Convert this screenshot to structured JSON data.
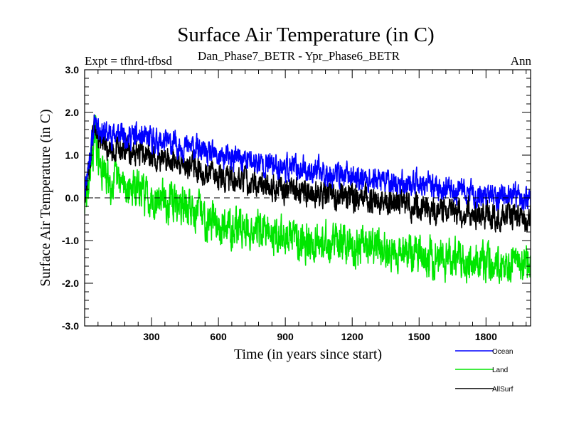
{
  "chart_data": {
    "type": "line",
    "title": "Surface Air Temperature (in C)",
    "subtitle": "Dan_Phase7_BETR - Ypr_Phase6_BETR",
    "left_note": "Expt = tfhrd-tfbsd",
    "right_note": "Ann",
    "xlabel": "Time (in years since start)",
    "ylabel": "Surface Air Temperature (in C)",
    "xlim": [
      0,
      2000
    ],
    "ylim": [
      -3.0,
      3.0
    ],
    "xticks": [
      300,
      600,
      900,
      1200,
      1500,
      1800
    ],
    "xtick_labels": [
      "300",
      "600",
      "900",
      "1200",
      "1500",
      "1800"
    ],
    "yticks": [
      3.0,
      2.0,
      1.0,
      0.0,
      -1.0,
      -2.0,
      -3.0
    ],
    "ytick_labels": [
      "3.0",
      "2.0",
      "1.0",
      "0.0",
      "-1.0",
      "-2.0",
      "-3.0"
    ],
    "zero_line": 0.0,
    "legend_position": "below-right",
    "series": [
      {
        "name": "Ocean",
        "color": "#0000ff",
        "x": [
          0,
          10,
          20,
          30,
          40,
          50,
          60,
          80,
          100,
          150,
          200,
          250,
          300,
          350,
          400,
          450,
          500,
          550,
          600,
          700,
          800,
          900,
          1000,
          1100,
          1200,
          1300,
          1400,
          1500,
          1600,
          1700,
          1800,
          1900,
          2000
        ],
        "values": [
          0.2,
          0.55,
          0.85,
          1.2,
          1.55,
          1.9,
          1.7,
          1.55,
          1.5,
          1.5,
          1.45,
          1.4,
          1.35,
          1.3,
          1.25,
          1.2,
          1.15,
          1.0,
          0.95,
          0.9,
          0.8,
          0.72,
          0.65,
          0.58,
          0.5,
          0.42,
          0.35,
          0.3,
          0.22,
          0.12,
          0.06,
          0.02,
          -0.05
        ]
      },
      {
        "name": "Land",
        "color": "#00e600",
        "x": [
          0,
          10,
          20,
          30,
          40,
          50,
          60,
          80,
          100,
          150,
          200,
          250,
          300,
          350,
          400,
          450,
          500,
          550,
          600,
          700,
          800,
          900,
          1000,
          1100,
          1200,
          1300,
          1400,
          1500,
          1600,
          1700,
          1800,
          1900,
          2000
        ],
        "values": [
          -0.2,
          0.1,
          0.5,
          0.9,
          1.2,
          1.5,
          0.9,
          0.6,
          0.45,
          0.35,
          0.25,
          0.15,
          0.05,
          -0.05,
          -0.12,
          -0.2,
          -0.3,
          -0.5,
          -0.58,
          -0.68,
          -0.8,
          -0.9,
          -0.98,
          -1.05,
          -1.12,
          -1.2,
          -1.28,
          -1.35,
          -1.42,
          -1.48,
          -1.52,
          -1.55,
          -1.6
        ]
      },
      {
        "name": "AllSurf",
        "color": "#000000",
        "x": [
          0,
          10,
          20,
          30,
          40,
          50,
          60,
          80,
          100,
          150,
          200,
          250,
          300,
          350,
          400,
          450,
          500,
          550,
          600,
          700,
          800,
          900,
          1000,
          1100,
          1200,
          1300,
          1400,
          1500,
          1600,
          1700,
          1800,
          1900,
          2000
        ],
        "values": [
          0.1,
          0.4,
          0.75,
          1.1,
          1.45,
          1.75,
          1.45,
          1.25,
          1.2,
          1.15,
          1.1,
          1.05,
          0.98,
          0.92,
          0.85,
          0.8,
          0.72,
          0.58,
          0.5,
          0.42,
          0.32,
          0.22,
          0.15,
          0.08,
          0.0,
          -0.08,
          -0.15,
          -0.2,
          -0.28,
          -0.35,
          -0.38,
          -0.42,
          -0.45
        ]
      }
    ]
  }
}
